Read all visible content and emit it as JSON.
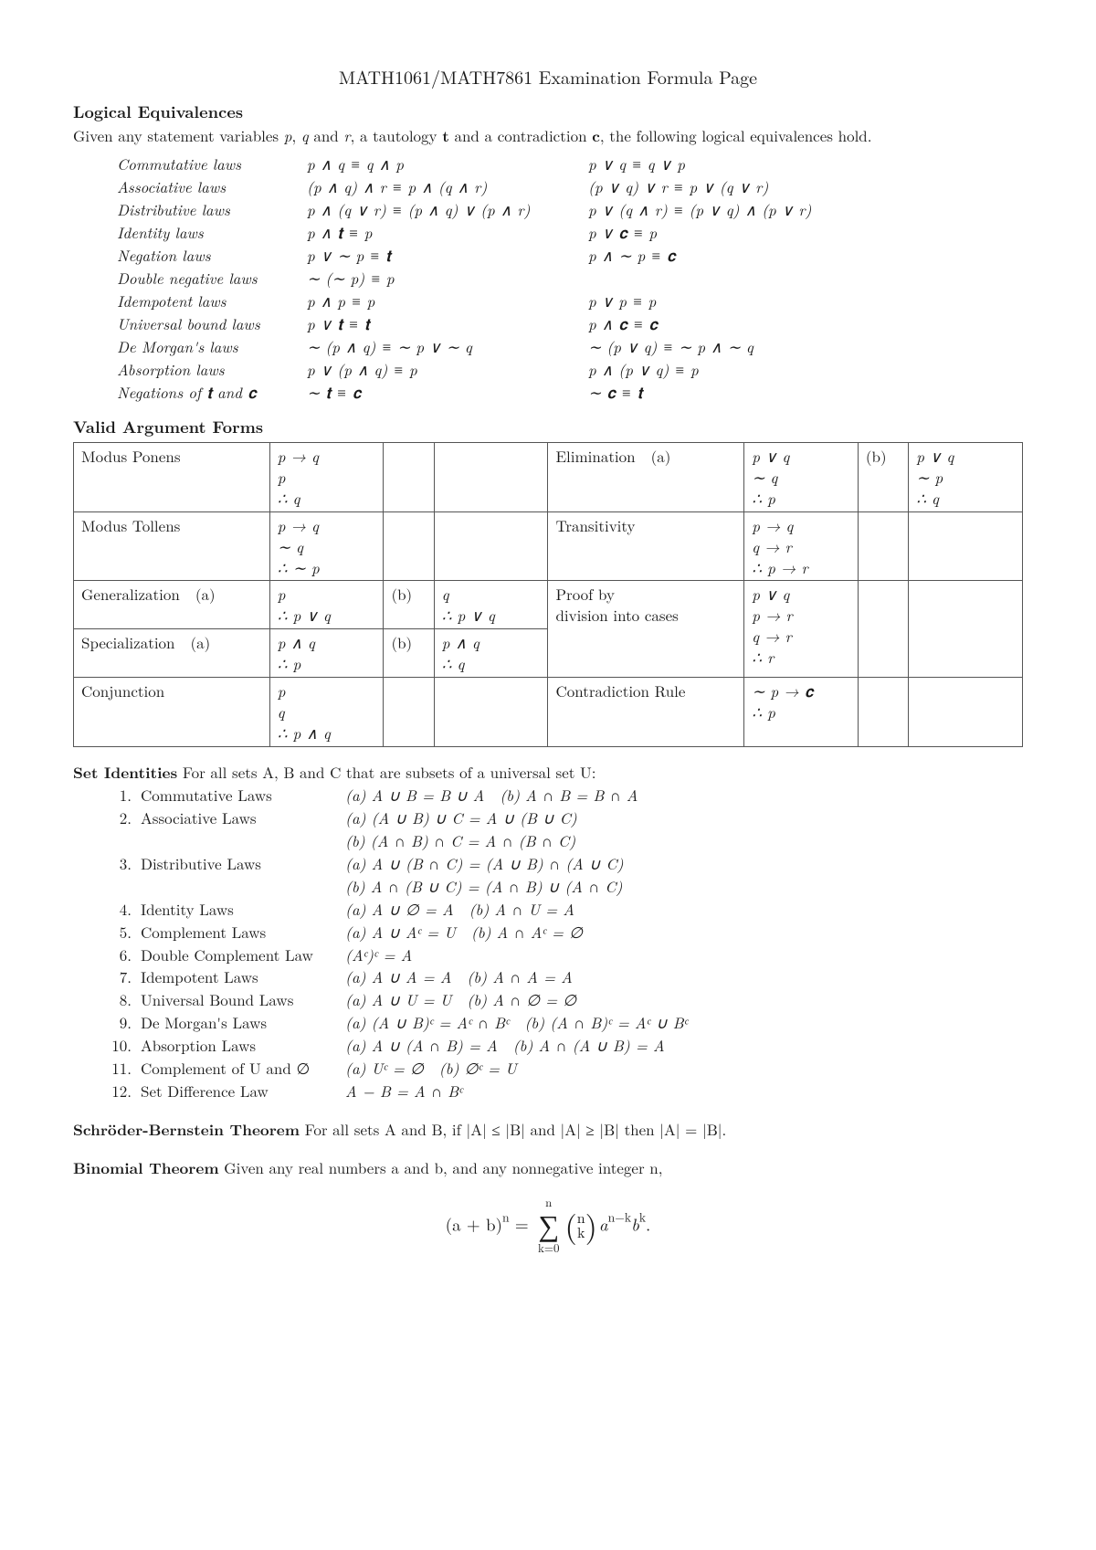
{
  "title": "MATH1061/MATH7861 Examination Formula Page",
  "logical_equivalences": {
    "heading": "Logical Equivalences",
    "intro_before": "Given any statement variables ",
    "intro_vars1": "p",
    "intro_comma1": ", ",
    "intro_vars2": "q",
    "intro_and": " and ",
    "intro_vars3": "r",
    "intro_taut": ", a tautology ",
    "intro_t": "t",
    "intro_contr": " and a contradiction ",
    "intro_c": "c",
    "intro_after": ", the following logical equivalences hold.",
    "rows": [
      {
        "name": "Commutative laws",
        "c1": "p ∧ q ≡ q ∧ p",
        "c2": "p ∨ q ≡ q ∨ p"
      },
      {
        "name": "Associative laws",
        "c1": "(p ∧ q) ∧ r ≡ p ∧ (q ∧ r)",
        "c2": "(p ∨ q) ∨ r ≡ p ∨ (q ∨ r)"
      },
      {
        "name": "Distributive laws",
        "c1": "p ∧ (q ∨ r) ≡ (p ∧ q) ∨ (p ∧ r)",
        "c2": "p ∨ (q ∧ r) ≡ (p ∨ q) ∧ (p ∨ r)"
      },
      {
        "name": "Identity laws",
        "c1": "p ∧ 𝐭 ≡ p",
        "c2": "p ∨ 𝐜 ≡ p"
      },
      {
        "name": "Negation laws",
        "c1": "p ∨ ∼ p ≡ 𝐭",
        "c2": "p ∧ ∼ p ≡ 𝐜"
      },
      {
        "name": "Double negative laws",
        "c1": "∼ (∼ p) ≡ p",
        "c2": ""
      },
      {
        "name": "Idempotent laws",
        "c1": "p ∧ p ≡ p",
        "c2": "p ∨ p ≡ p"
      },
      {
        "name": "Universal bound laws",
        "c1": "p ∨ 𝐭 ≡ 𝐭",
        "c2": "p ∧ 𝐜 ≡ 𝐜"
      },
      {
        "name": "De Morgan's laws",
        "c1": "∼ (p ∧ q) ≡ ∼ p ∨ ∼ q",
        "c2": "∼ (p ∨ q) ≡ ∼ p ∧ ∼ q"
      },
      {
        "name": "Absorption laws",
        "c1": "p ∨ (p ∧ q) ≡ p",
        "c2": "p ∧ (p ∨ q) ≡ p"
      },
      {
        "name": "Negations of 𝐭 and 𝐜",
        "c1": "∼ 𝐭 ≡ 𝐜",
        "c2": "∼ 𝐜 ≡ 𝐭"
      }
    ]
  },
  "valid_arguments": {
    "heading": "Valid Argument Forms",
    "rows": [
      {
        "l_name": "Modus Ponens",
        "l_sub": "",
        "l_a": [
          "p → q",
          "p",
          "∴ q"
        ],
        "l_sub2": "",
        "l_b": [],
        "r_name": "Elimination",
        "r_sub": "(a)",
        "r_a": [
          "p ∨ q",
          "∼ q",
          "∴ p"
        ],
        "r_sub2": "(b)",
        "r_b": [
          "p ∨ q",
          "∼ p",
          "∴ q"
        ]
      },
      {
        "l_name": "Modus Tollens",
        "l_sub": "",
        "l_a": [
          "p → q",
          "∼ q",
          "∴ ∼ p"
        ],
        "l_sub2": "",
        "l_b": [],
        "r_name": "Transitivity",
        "r_sub": "",
        "r_a": [
          "p → q",
          "q → r",
          "∴ p → r"
        ],
        "r_sub2": "",
        "r_b": []
      },
      {
        "l_name": "Generalization",
        "l_sub": "(a)",
        "l_a": [
          "p",
          "∴ p ∨ q"
        ],
        "l_sub2": "(b)",
        "l_b": [
          "q",
          "∴ p ∨ q"
        ],
        "r_name": "Proof by\ndivision into cases",
        "r_sub": "",
        "r_a": [
          "p ∨ q",
          "p → r",
          "q → r",
          "∴ r"
        ],
        "r_sub2": "",
        "r_b": [],
        "rowspan_right": 2
      },
      {
        "l_name": "Specialization",
        "l_sub": "(a)",
        "l_a": [
          "p ∧ q",
          "∴ p"
        ],
        "l_sub2": "(b)",
        "l_b": [
          "p ∧ q",
          "∴ q"
        ],
        "skip_right": true
      },
      {
        "l_name": "Conjunction",
        "l_sub": "",
        "l_a": [
          "p",
          "q",
          "∴ p ∧ q"
        ],
        "l_sub2": "",
        "l_b": [],
        "r_name": "Contradiction Rule",
        "r_sub": "",
        "r_a": [
          "∼ p → 𝐜",
          "∴ p"
        ],
        "r_sub2": "",
        "r_b": []
      }
    ]
  },
  "set_identities": {
    "heading": "Set Identities",
    "intro": " For all sets A, B and C that are subsets of a universal set U:",
    "rows": [
      {
        "n": "1.",
        "name": "Commutative Laws",
        "rhs": [
          "(a) A ∪ B = B ∪ A (b) A ∩ B = B ∩ A"
        ]
      },
      {
        "n": "2.",
        "name": "Associative Laws",
        "rhs": [
          "(a) (A ∪ B) ∪ C = A ∪ (B ∪ C)",
          "(b) (A ∩ B) ∩ C = A ∩ (B ∩ C)"
        ]
      },
      {
        "n": "3.",
        "name": "Distributive Laws",
        "rhs": [
          "(a) A ∪ (B ∩ C) = (A ∪ B) ∩ (A ∪ C)",
          "(b) A ∩ (B ∪ C) = (A ∩ B) ∪ (A ∩ C)"
        ]
      },
      {
        "n": "4.",
        "name": "Identity Laws",
        "rhs": [
          "(a) A ∪ ∅ = A (b) A ∩ U = A"
        ]
      },
      {
        "n": "5.",
        "name": "Complement Laws",
        "rhs": [
          "(a) A ∪ Aᶜ = U (b) A ∩ Aᶜ = ∅"
        ]
      },
      {
        "n": "6.",
        "name": "Double Complement Law",
        "rhs": [
          "(Aᶜ)ᶜ = A"
        ]
      },
      {
        "n": "7.",
        "name": "Idempotent Laws",
        "rhs": [
          "(a) A ∪ A = A (b) A ∩ A = A"
        ]
      },
      {
        "n": "8.",
        "name": "Universal Bound Laws",
        "rhs": [
          "(a) A ∪ U = U (b) A ∩ ∅ = ∅"
        ]
      },
      {
        "n": "9.",
        "name": "De Morgan's Laws",
        "rhs": [
          "(a) (A ∪ B)ᶜ = Aᶜ ∩ Bᶜ (b) (A ∩ B)ᶜ = Aᶜ ∪ Bᶜ"
        ]
      },
      {
        "n": "10.",
        "name": "Absorption Laws",
        "rhs": [
          "(a) A ∪ (A ∩ B) = A (b) A ∩ (A ∪ B) = A"
        ]
      },
      {
        "n": "11.",
        "name": "Complement of U and ∅",
        "rhs": [
          "(a) Uᶜ = ∅ (b) ∅ᶜ = U"
        ]
      },
      {
        "n": "12.",
        "name": "Set Difference Law",
        "rhs": [
          "A − B = A ∩ Bᶜ"
        ]
      }
    ]
  },
  "schroder": {
    "heading": "Schröder-Bernstein Theorem",
    "text": " For all sets A and B, if |A| ≤ |B| and |A| ≥ |B| then |A| = |B|."
  },
  "binomial": {
    "heading": "Binomial Theorem",
    "text": " Given any real numbers a and b, and any nonnegative integer n,",
    "lhs": "(a + b)",
    "lhs_sup": "n",
    "eq": " = ",
    "sum_top": "n",
    "sum_bot": "k=0",
    "choose_top": "n",
    "choose_bot": "k",
    "rhs_a": "a",
    "rhs_a_sup": "n−k",
    "rhs_b": "b",
    "rhs_b_sup": "k",
    "period": "."
  }
}
